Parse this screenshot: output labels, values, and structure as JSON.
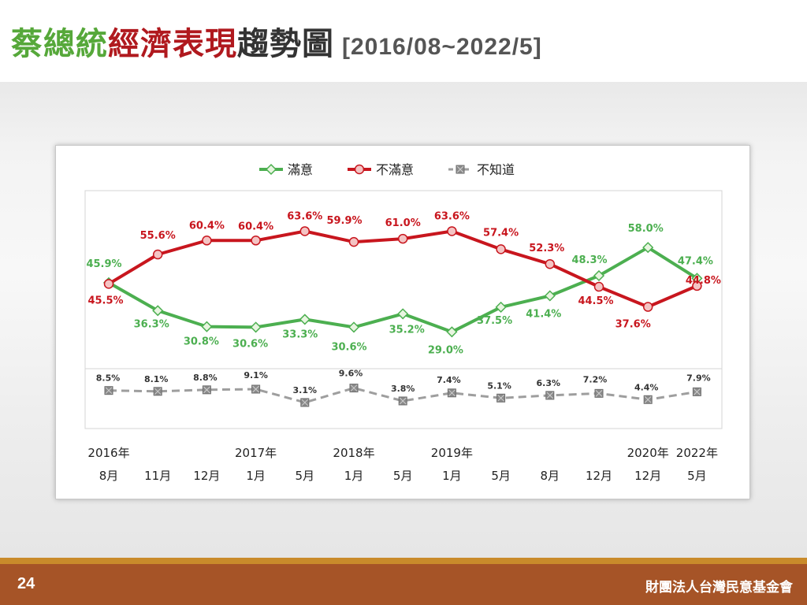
{
  "title": {
    "part1": "蔡總統",
    "part2": "經濟表現",
    "part3": "趨勢圖",
    "range": "[2016/08~2022/5]"
  },
  "footer": {
    "page_number": "24",
    "organization": "財團法人台灣民意基金會"
  },
  "colors": {
    "satisfied": "#4caf50",
    "dissatisfied": "#c8161e",
    "unknown": "#9e9e9e",
    "footer_bg": "#a65427"
  },
  "chart_data": {
    "type": "line",
    "categories": [
      {
        "year": "2016年",
        "month": "8月"
      },
      {
        "year": "",
        "month": "11月"
      },
      {
        "year": "",
        "month": "12月"
      },
      {
        "year": "2017年",
        "month": "1月"
      },
      {
        "year": "",
        "month": "5月"
      },
      {
        "year": "2018年",
        "month": "1月"
      },
      {
        "year": "",
        "month": "5月"
      },
      {
        "year": "2019年",
        "month": "1月"
      },
      {
        "year": "",
        "month": "5月"
      },
      {
        "year": "",
        "month": "8月"
      },
      {
        "year": "",
        "month": "12月"
      },
      {
        "year": "2020年",
        "month": "12月"
      },
      {
        "year": "2022年",
        "month": "5月"
      }
    ],
    "series": [
      {
        "name": "滿意",
        "color": "#4caf50",
        "marker": "diamond",
        "style": "solid",
        "values": [
          45.9,
          36.3,
          30.8,
          30.6,
          33.3,
          30.6,
          35.2,
          29.0,
          37.5,
          41.4,
          48.3,
          58.0,
          47.4
        ]
      },
      {
        "name": "不滿意",
        "color": "#c8161e",
        "marker": "circle",
        "style": "solid",
        "values": [
          45.5,
          55.6,
          60.4,
          60.4,
          63.6,
          59.9,
          61.0,
          63.6,
          57.4,
          52.3,
          44.5,
          37.6,
          44.8
        ]
      },
      {
        "name": "不知道",
        "color": "#9e9e9e",
        "marker": "square-x",
        "style": "dashed",
        "values": [
          8.5,
          8.1,
          8.8,
          9.1,
          3.1,
          9.6,
          3.8,
          7.4,
          5.1,
          6.3,
          7.2,
          4.4,
          7.9
        ]
      }
    ],
    "labels": {
      "滿意": [
        "45.9%",
        "36.3%",
        "30.8%",
        "30.6%",
        "33.3%",
        "30.6%",
        "35.2%",
        "29.0%",
        "37.5%",
        "41.4%",
        "48.3%",
        "58.0%",
        "47.4%"
      ],
      "不滿意": [
        "45.5%",
        "55.6%",
        "60.4%",
        "60.4%",
        "63.6%",
        "59.9%",
        "61.0%",
        "63.6%",
        "57.4%",
        "52.3%",
        "44.5%",
        "37.6%",
        "44.8%"
      ],
      "不知道": [
        "8.5%",
        "8.1%",
        "8.8%",
        "9.1%",
        "3.1%",
        "9.6%",
        "3.8%",
        "7.4%",
        "5.1%",
        "6.3%",
        "7.2%",
        "4.4%",
        "7.9%"
      ]
    },
    "legend_position": "top",
    "grid": false
  }
}
